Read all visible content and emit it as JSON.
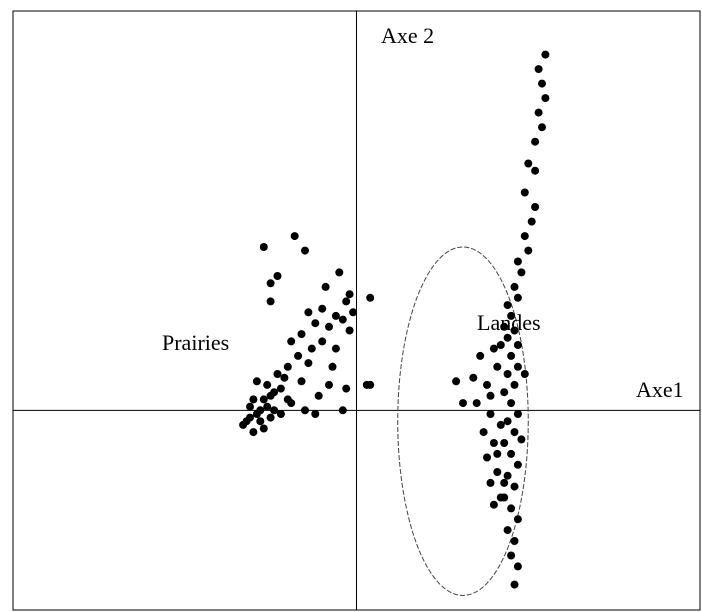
{
  "chart_data": {
    "type": "scatter",
    "axis_labels": {
      "x": "Axe1",
      "y": "Axe 2"
    },
    "annotations": [
      "Prairies",
      "Landes"
    ],
    "xlim": [
      -1.0,
      1.0
    ],
    "ylim": [
      -0.55,
      1.1
    ],
    "grid": false,
    "marker_color": "#000000",
    "ellipse": {
      "cx": 0.31,
      "cy": -0.03,
      "rx": 0.19,
      "ry": 0.48
    },
    "series": [
      {
        "name": "Prairies",
        "points": [
          [
            -0.27,
            0.45
          ],
          [
            -0.18,
            0.48
          ],
          [
            -0.15,
            0.44
          ],
          [
            -0.25,
            0.35
          ],
          [
            -0.23,
            0.37
          ],
          [
            -0.25,
            0.3
          ],
          [
            -0.09,
            0.34
          ],
          [
            -0.05,
            0.38
          ],
          [
            -0.03,
            0.3
          ],
          [
            -0.02,
            0.32
          ],
          [
            0.04,
            0.31
          ],
          [
            -0.1,
            0.28
          ],
          [
            -0.14,
            0.27
          ],
          [
            -0.16,
            0.21
          ],
          [
            -0.08,
            0.23
          ],
          [
            -0.06,
            0.26
          ],
          [
            -0.12,
            0.24
          ],
          [
            -0.04,
            0.25
          ],
          [
            -0.02,
            0.22
          ],
          [
            -0.1,
            0.19
          ],
          [
            -0.13,
            0.17
          ],
          [
            -0.19,
            0.19
          ],
          [
            -0.17,
            0.15
          ],
          [
            -0.14,
            0.13
          ],
          [
            -0.2,
            0.12
          ],
          [
            -0.21,
            0.09
          ],
          [
            -0.16,
            0.08
          ],
          [
            -0.24,
            0.05
          ],
          [
            -0.22,
            0.06
          ],
          [
            -0.27,
            0.03
          ],
          [
            -0.3,
            0.03
          ],
          [
            -0.26,
            0.01
          ],
          [
            -0.29,
            -0.01
          ],
          [
            -0.24,
            -0.0
          ],
          [
            -0.31,
            -0.02
          ],
          [
            -0.28,
            -0.03
          ],
          [
            -0.25,
            -0.02
          ],
          [
            -0.27,
            -0.05
          ],
          [
            -0.3,
            -0.06
          ],
          [
            -0.33,
            -0.04
          ],
          [
            -0.26,
            0.07
          ],
          [
            -0.19,
            0.02
          ],
          [
            -0.15,
            0.0
          ],
          [
            -0.11,
            0.04
          ],
          [
            -0.08,
            0.07
          ],
          [
            -0.04,
            0.0
          ],
          [
            -0.12,
            -0.01
          ],
          [
            -0.23,
            0.1
          ],
          [
            -0.29,
            0.08
          ],
          [
            -0.31,
            0.01
          ],
          [
            -0.32,
            -0.03
          ],
          [
            -0.28,
            0.0
          ],
          [
            -0.25,
            0.04
          ],
          [
            -0.22,
            -0.01
          ],
          [
            -0.2,
            0.03
          ],
          [
            -0.03,
            0.06
          ],
          [
            -0.07,
            0.12
          ],
          [
            0.03,
            0.07
          ],
          [
            -0.06,
            0.17
          ],
          [
            -0.01,
            0.27
          ]
        ]
      },
      {
        "name": "Landes",
        "points": [
          [
            0.55,
            0.98
          ],
          [
            0.53,
            0.94
          ],
          [
            0.54,
            0.9
          ],
          [
            0.55,
            0.86
          ],
          [
            0.53,
            0.82
          ],
          [
            0.54,
            0.78
          ],
          [
            0.52,
            0.74
          ],
          [
            0.5,
            0.68
          ],
          [
            0.52,
            0.66
          ],
          [
            0.49,
            0.6
          ],
          [
            0.52,
            0.56
          ],
          [
            0.51,
            0.52
          ],
          [
            0.49,
            0.48
          ],
          [
            0.5,
            0.44
          ],
          [
            0.47,
            0.41
          ],
          [
            0.48,
            0.38
          ],
          [
            0.46,
            0.34
          ],
          [
            0.47,
            0.31
          ],
          [
            0.44,
            0.29
          ],
          [
            0.45,
            0.26
          ],
          [
            0.43,
            0.23
          ],
          [
            0.46,
            0.22
          ],
          [
            0.44,
            0.2
          ],
          [
            0.42,
            0.18
          ],
          [
            0.47,
            0.18
          ],
          [
            0.45,
            0.15
          ],
          [
            0.47,
            0.12
          ],
          [
            0.44,
            0.1
          ],
          [
            0.46,
            0.07
          ],
          [
            0.43,
            0.05
          ],
          [
            0.45,
            0.02
          ],
          [
            0.47,
            -0.01
          ],
          [
            0.44,
            -0.03
          ],
          [
            0.46,
            -0.06
          ],
          [
            0.43,
            -0.09
          ],
          [
            0.45,
            -0.12
          ],
          [
            0.47,
            -0.15
          ],
          [
            0.44,
            -0.18
          ],
          [
            0.46,
            -0.21
          ],
          [
            0.43,
            -0.24
          ],
          [
            0.45,
            -0.27
          ],
          [
            0.47,
            -0.3
          ],
          [
            0.44,
            -0.33
          ],
          [
            0.46,
            -0.36
          ],
          [
            0.45,
            -0.4
          ],
          [
            0.47,
            -0.43
          ],
          [
            0.46,
            -0.48
          ],
          [
            0.4,
            0.17
          ],
          [
            0.36,
            0.15
          ],
          [
            0.34,
            0.09
          ],
          [
            0.38,
            0.07
          ],
          [
            0.35,
            0.02
          ],
          [
            0.39,
            -0.01
          ],
          [
            0.37,
            -0.06
          ],
          [
            0.4,
            -0.09
          ],
          [
            0.38,
            -0.13
          ],
          [
            0.41,
            -0.17
          ],
          [
            0.39,
            -0.2
          ],
          [
            0.42,
            -0.24
          ],
          [
            0.4,
            -0.26
          ],
          [
            0.41,
            0.12
          ],
          [
            0.39,
            0.04
          ],
          [
            0.42,
            -0.04
          ],
          [
            0.41,
            -0.12
          ],
          [
            0.43,
            -0.2
          ],
          [
            0.29,
            0.08
          ],
          [
            0.31,
            0.02
          ],
          [
            0.04,
            0.07
          ],
          [
            0.49,
            0.1
          ],
          [
            0.48,
            -0.08
          ]
        ]
      }
    ]
  }
}
